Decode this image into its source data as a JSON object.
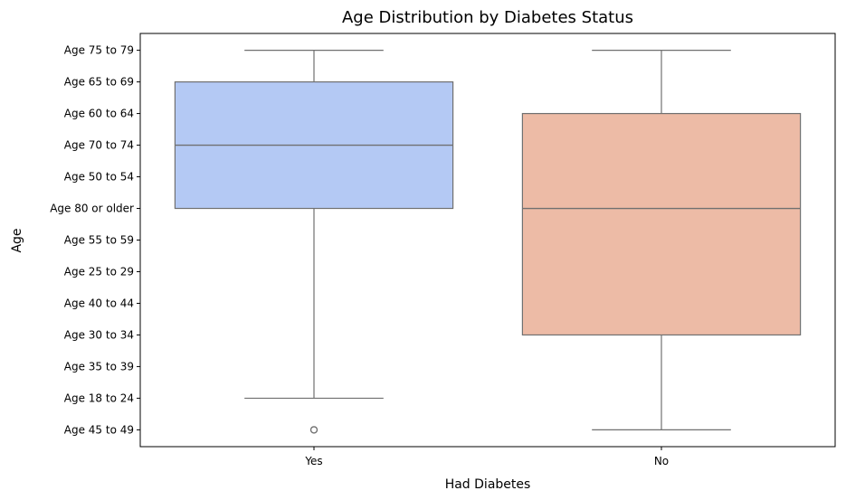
{
  "chart_data": {
    "type": "box",
    "title": "Age Distribution by Diabetes Status",
    "xlabel": "Had Diabetes",
    "ylabel": "Age",
    "categories": [
      "Yes",
      "No"
    ],
    "y_categories": [
      "Age 75 to 79",
      "Age 65 to 69",
      "Age 60 to 64",
      "Age 70 to 74",
      "Age 50 to 54",
      "Age 80 or older",
      "Age 55 to 59",
      "Age 25 to 29",
      "Age 40 to 44",
      "Age 30 to 34",
      "Age 35 to 39",
      "Age 18 to 24",
      "Age 45 to 49"
    ],
    "y_order": "first category at top",
    "boxes": [
      {
        "category": "Yes",
        "color": "#b4c9f4",
        "whisker_high": "Age 75 to 79",
        "q3": "Age 65 to 69",
        "median": "Age 70 to 74",
        "q1": "Age 80 or older",
        "whisker_low": "Age 18 to 24",
        "outliers": [
          "Age 45 to 49"
        ]
      },
      {
        "category": "No",
        "color": "#edbba6",
        "whisker_high": "Age 75 to 79",
        "q3": "Age 60 to 64",
        "median": "Age 80 or older",
        "q1": "Age 30 to 34",
        "whisker_low": "Age 45 to 49",
        "outliers": []
      }
    ],
    "grid": false,
    "legend": "none"
  }
}
